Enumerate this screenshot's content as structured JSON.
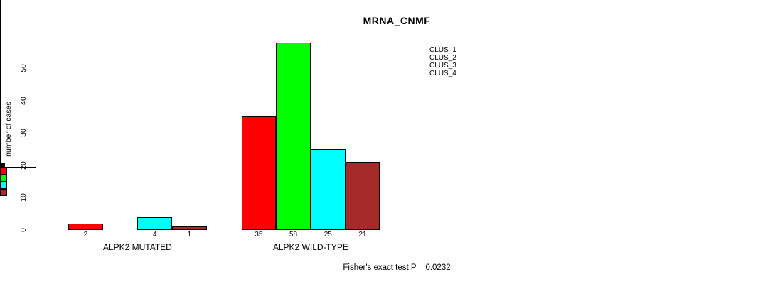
{
  "chart_data": {
    "type": "bar",
    "title": "MRNA_CNMF",
    "ylabel": "number of cases",
    "xlabel": "",
    "footnote": "Fisher's exact test P = 0.0232",
    "categories": [
      "ALPK2 MUTATED",
      "ALPK2 WILD-TYPE"
    ],
    "series": [
      {
        "name": "CLUS_1",
        "color": "#FF0000",
        "values": [
          2,
          35
        ]
      },
      {
        "name": "CLUS_2",
        "color": "#00FF00",
        "values": [
          0,
          58
        ]
      },
      {
        "name": "CLUS_3",
        "color": "#00FFFF",
        "values": [
          4,
          25
        ]
      },
      {
        "name": "CLUS_4",
        "color": "#A52A2A",
        "values": [
          1,
          21
        ]
      }
    ],
    "yticks": [
      0,
      10,
      20,
      30,
      40,
      50
    ],
    "ylim": [
      0,
      58
    ],
    "bar_value_labels_shown": true,
    "zero_value_label_hidden": true,
    "grid": false,
    "legend_position": "top-right",
    "axis_color": "#000000",
    "text_color": "#000000",
    "background": "#FFFFFF"
  }
}
